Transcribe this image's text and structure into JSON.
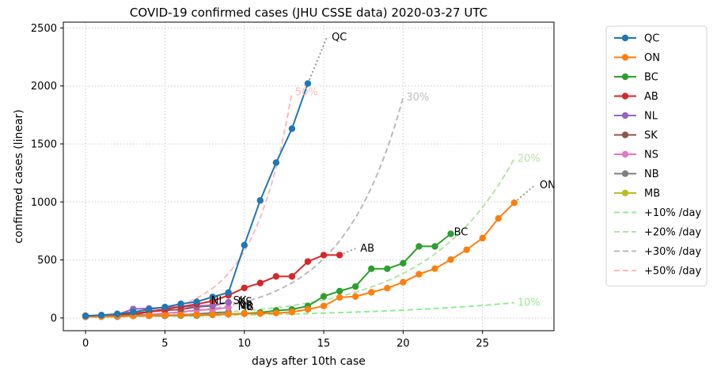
{
  "chart_data": {
    "type": "line",
    "title": "COVID-19 confirmed cases (JHU CSSE data) 2020-03-27 UTC",
    "xlabel": "days after 10th case",
    "ylabel": "confirmed cases (linear)",
    "xlim": [
      -1.4,
      29.5
    ],
    "ylim": [
      -110,
      2550
    ],
    "xticks": [
      0,
      5,
      10,
      15,
      20,
      25
    ],
    "yticks": [
      0,
      500,
      1000,
      1500,
      2000,
      2500
    ],
    "grid": true,
    "legend_position": "outside right",
    "series": [
      {
        "name": "QC",
        "color": "#1f77b4",
        "x": [
          0,
          1,
          2,
          3,
          4,
          5,
          6,
          7,
          8,
          9,
          10,
          11,
          12,
          13,
          14
        ],
        "y": [
          17,
          24,
          35,
          50,
          74,
          94,
          121,
          139,
          181,
          219,
          628,
          1013,
          1339,
          1632,
          2021
        ],
        "end_label": "QC",
        "tail": {
          "x": 15.2,
          "y": 2420
        }
      },
      {
        "name": "ON",
        "color": "#ff7f0e",
        "x": [
          0,
          1,
          2,
          3,
          4,
          5,
          6,
          7,
          8,
          9,
          10,
          11,
          12,
          13,
          14,
          15,
          16,
          17,
          18,
          19,
          20,
          21,
          22,
          23,
          24,
          25,
          26,
          27
        ],
        "y": [
          10,
          12,
          15,
          18,
          20,
          22,
          25,
          26,
          28,
          32,
          36,
          37,
          42,
          51,
          74,
          103,
          177,
          185,
          221,
          257,
          308,
          377,
          425,
          503,
          588,
          688,
          858,
          993
        ],
        "end_label": "ON",
        "tail": {
          "x": 28.3,
          "y": 1145
        }
      },
      {
        "name": "BC",
        "color": "#2ca02c",
        "x": [
          0,
          1,
          2,
          3,
          4,
          5,
          6,
          7,
          8,
          9,
          10,
          11,
          12,
          13,
          14,
          15,
          16,
          17,
          18,
          19,
          20,
          21,
          22,
          23
        ],
        "y": [
          12,
          13,
          15,
          20,
          21,
          21,
          21,
          21,
          27,
          32,
          39,
          46,
          64,
          73,
          103,
          186,
          231,
          271,
          424,
          424,
          472,
          617,
          617,
          725
        ],
        "end_label": "BC",
        "tail": null
      },
      {
        "name": "AB",
        "color": "#d62728",
        "x": [
          0,
          1,
          2,
          3,
          4,
          5,
          6,
          7,
          8,
          9,
          10,
          11,
          12,
          13,
          14,
          15,
          16
        ],
        "y": [
          19,
          23,
          29,
          39,
          56,
          74,
          97,
          119,
          146,
          195,
          259,
          301,
          358,
          358,
          486,
          542,
          542
        ],
        "end_label": "AB",
        "tail": {
          "x": 17.0,
          "y": 598
        }
      },
      {
        "name": "NL",
        "color": "#9467bd",
        "x": [
          0,
          1,
          2,
          3,
          4,
          5,
          6,
          7,
          8,
          9
        ],
        "y": [
          13,
          24,
          29,
          77,
          82,
          90,
          94,
          103,
          110,
          135
        ],
        "end_label": "NL",
        "tail": null
      },
      {
        "name": "SK",
        "color": "#8c564b",
        "x": [
          0,
          1,
          2,
          3,
          4,
          5,
          6,
          7,
          8,
          9
        ],
        "y": [
          10,
          20,
          20,
          26,
          52,
          66,
          72,
          95,
          104,
          134
        ],
        "end_label": "SK",
        "tail": null
      },
      {
        "name": "NS",
        "color": "#e377c2",
        "x": [
          0,
          1,
          2,
          3,
          4,
          5,
          6,
          7,
          8,
          9
        ],
        "y": [
          12,
          14,
          15,
          21,
          28,
          41,
          51,
          68,
          73,
          90
        ],
        "end_label": "NS",
        "tail": null
      },
      {
        "name": "NB",
        "color": "#7f7f7f",
        "x": [
          0,
          1,
          2,
          3,
          4,
          5,
          6,
          7,
          8,
          9
        ],
        "y": [
          11,
          11,
          11,
          17,
          18,
          18,
          26,
          33,
          45,
          51
        ],
        "end_label": "NB",
        "tail": null
      },
      {
        "name": "MB",
        "color": "#bcbd22",
        "x": [
          0,
          1,
          2,
          3,
          4,
          5,
          6,
          7,
          8,
          9
        ],
        "y": [
          15,
          17,
          17,
          18,
          19,
          20,
          21,
          25,
          35,
          39
        ],
        "end_label": "MB",
        "tail": null
      }
    ],
    "reference_lines": [
      {
        "name": "+10% /day",
        "rate": 0.1,
        "x_end": 27.0,
        "color": "#90ee90",
        "label": "10%"
      },
      {
        "name": "+20% /day",
        "rate": 0.2,
        "x_end": 27.0,
        "color": "#b5e3a8",
        "label": "20%"
      },
      {
        "name": "+30% /day",
        "rate": 0.3,
        "x_end": 20.0,
        "color": "#bbbbbb",
        "label": "30%"
      },
      {
        "name": "+50% /day",
        "rate": 0.5,
        "x_end": 13.0,
        "color": "#ffbbbb",
        "label": "50%"
      }
    ],
    "reference_start": 10
  }
}
